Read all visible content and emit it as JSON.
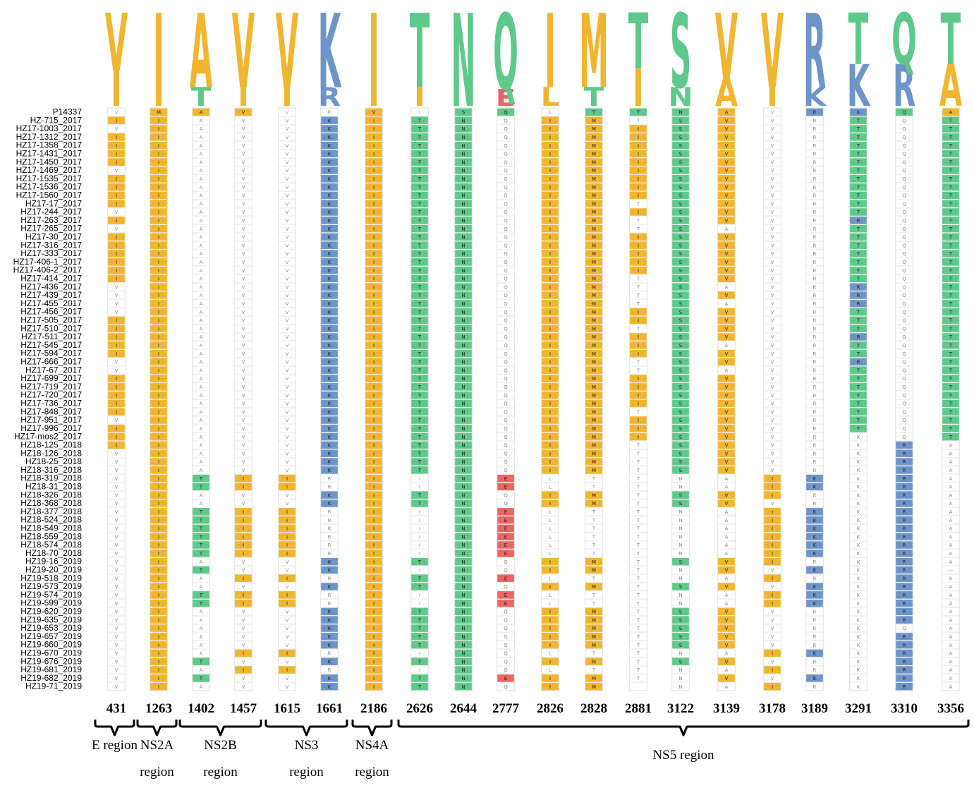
{
  "figure": {
    "type": "multiple sequence alignment with sequence logo",
    "colors": {
      "V": "#F0B630",
      "I": "#F0B630",
      "M": "#F0B630",
      "L": "#F0B630",
      "A": "#F0B630",
      "T": "#5EC98A",
      "S": "#5EC98A",
      "N": "#5EC98A",
      "Q": "#5EC98A",
      "K": "#6E95C9",
      "R": "#6E95C9",
      "E": "#EC6464"
    },
    "sample_names": [
      "P14337",
      "HZ-715_2017",
      "HZ17-1003_2017",
      "HZ17-1312_2017",
      "HZ17-1358_2017",
      "HZ17-1431_2017",
      "HZ17-1450_2017",
      "HZ17-1469_2017",
      "HZ17-1535_2017",
      "HZ17-1536_2017",
      "HZ17-1560_2017",
      "HZ17-17_2017",
      "HZ17-244_2017",
      "HZ17-263_2017",
      "HZ17-265_2017",
      "HZ17-30_2017",
      "HZ17-316_2017",
      "HZ17-333_2017",
      "HZ17-406-1_2017",
      "HZ17-406-2_2017",
      "HZ17-414_2017",
      "HZ17-436_2017",
      "HZ17-439_2017",
      "HZ17-455_2017",
      "HZ17-456_2017",
      "HZ17-505_2017",
      "HZ17-510_2017",
      "HZ17-511_2017",
      "HZ17-545_2017",
      "HZ17-594_2017",
      "HZ17-666_2017",
      "HZ17-67_2017",
      "HZ17-699_2017",
      "HZ17-719_2017",
      "HZ17-720_2017",
      "HZ17-736_2017",
      "HZ17-848_2017",
      "HZ17-951_2017",
      "HZ17-996_2017",
      "HZ17-mos2_2017",
      "HZ18-125_2018",
      "HZ18-126_2018",
      "HZ18-25_2018",
      "HZ18-316_2018",
      "HZ18-319_2018",
      "HZ18-31_2018",
      "HZ18-326_2018",
      "HZ18-368_2018",
      "HZ18-377_2018",
      "HZ18-524_2018",
      "HZ18-549_2018",
      "HZ18-559_2018",
      "HZ18-574_2018",
      "HZ18-70_2018",
      "HZ19-16_2019",
      "HZ19-20_2019",
      "HZ19-518_2019",
      "HZ19-573_2019",
      "HZ19-574_2019",
      "HZ19-599_2019",
      "HZ19-620_2019",
      "HZ19-635_2019",
      "HZ19-653_2019",
      "HZ19-657_2019",
      "HZ19-660_2019",
      "HZ19-670_2019",
      "HZ19-676_2019",
      "HZ19-681_2019",
      "HZ19-682_2019",
      "HZ19-71_2019"
    ],
    "positions": [
      {
        "label": "431",
        "logo": [
          {
            "aa": "V",
            "frac": 0.62
          },
          {
            "aa": "I",
            "frac": 0.38
          }
        ],
        "ref": "V",
        "vals": "IVIIIIVIIIIVIVIIIIIIVVVVIIIIIVVIIIIIVIIIVVVVVVVVVVVVVVVVVVVVVVVVVVVVV",
        "ref_hl": false
      },
      {
        "label": "1263",
        "logo": [
          {
            "aa": "I",
            "frac": 1.0
          }
        ],
        "ref": "M",
        "vals": "IIIIIIIIIIIIIIIIIIIIIIIIIIIIIIIIIIIIIIIIIIIIIIIIIIIIIIIIIIIIIIIIIIIII",
        "ref_hl": true
      },
      {
        "label": "1402",
        "logo": [
          {
            "aa": "A",
            "frac": 0.8
          },
          {
            "aa": "T",
            "frac": 0.2
          }
        ],
        "ref": "A",
        "vals": "AAAAAAAAAAAAAAAAAAAAAAAAAAAAAAAAAAAAAAAAAAATTAATTTTTTATAATTAAAAAATATA",
        "ref_hl": true
      },
      {
        "label": "1457",
        "logo": [
          {
            "aa": "V",
            "frac": 0.8
          },
          {
            "aa": "I",
            "frac": 0.2
          }
        ],
        "ref": "V",
        "vals": "VVVVVVVVVVVVVVVVVVVVVVVVVVVVVVVVVVVVVVVVVVVIIVVIIIIIIVVIVIIVVVVVIVIVV",
        "ref_hl": true
      },
      {
        "label": "1615",
        "logo": [
          {
            "aa": "V",
            "frac": 0.8
          },
          {
            "aa": "I",
            "frac": 0.2
          }
        ],
        "ref": "V",
        "vals": "VVVVVVVVVVVVVVVVVVVVVVVVVVVVVVVVVVVVVVVVVVVIIVVIIIIIIVVIVIIVVVVVIVIVV",
        "ref_hl": false
      },
      {
        "label": "1661",
        "logo": [
          {
            "aa": "K",
            "frac": 0.8
          },
          {
            "aa": "R",
            "frac": 0.2
          }
        ],
        "ref": "R",
        "vals": "KKKKKKKKKKKKKKKKKKKKKKKKKKKKKKKKKKKKKKKKKKKRRKKRRRRRRKKRKRRKKKKKRKRKK",
        "ref_hl": false
      },
      {
        "label": "2186",
        "logo": [
          {
            "aa": "I",
            "frac": 1.0
          }
        ],
        "ref": "V",
        "vals": "IIIIIIIIIIIIIIIIIIIIIIIIIIIIIIIIIIIIIIIIIIIIIIIIIIIIIIIIIIIIIIIIIIIII",
        "ref_hl": true
      },
      {
        "label": "2626",
        "logo": [
          {
            "aa": "T",
            "frac": 0.8
          },
          {
            "aa": "I",
            "frac": 0.2
          }
        ],
        "ref": "I",
        "vals": "TTTTTTTTTTTTTTTTTTTTTTTTTTTTTTTTTTTTTTTTTTTIITTIIIIIITITTIITTTTTITITT",
        "ref_hl": false
      },
      {
        "label": "2644",
        "logo": [
          {
            "aa": "N",
            "frac": 1.0
          }
        ],
        "ref": "S",
        "vals": "NNNNNNNNNNNNNNNNNNNNNNNNNNNNNNNNNNNNNNNNNNNNNNNNNNNNNNNNNNNNNNNNNNNNN",
        "ref_hl": true
      },
      {
        "label": "2777",
        "logo": [
          {
            "aa": "Q",
            "frac": 0.82
          },
          {
            "aa": "E",
            "frac": 0.18
          }
        ],
        "ref": "Q",
        "vals": "QQQQQQQQQQQQQQQQQQQQQQQQQQQQQQQQQQQQQQQQQQQEEQQEEEEEEQQEQEEQQQQQQQQEQ",
        "ref_hl": true
      },
      {
        "label": "2826",
        "logo": [
          {
            "aa": "I",
            "frac": 0.8
          },
          {
            "aa": "L",
            "frac": 0.2
          }
        ],
        "ref": "L",
        "vals": "IIIIIIIIIIIIIIIIIIIIIIIIIIIIIIIIIIIIIIIIIIILLIILLLLLLIILILLIIIIILILII",
        "ref_hl": false
      },
      {
        "label": "2828",
        "logo": [
          {
            "aa": "M",
            "frac": 0.8
          },
          {
            "aa": "T",
            "frac": 0.2
          }
        ],
        "ref": "T",
        "vals": "MMMMMMMMMMMMMMMMMMMMMMMMMMMMMMMMMMMMMMMMMMMTTMMTTTTTTMMTMTTMMMMMTMTMM",
        "ref_hl": true
      },
      {
        "label": "2881",
        "logo": [
          {
            "aa": "T",
            "frac": 0.6
          },
          {
            "aa": "I",
            "frac": 0.4
          }
        ],
        "ref": "T",
        "vals": "TIIIIIIIIITITTIIIIITTTTIITIIITTIIIITIIITTTTTTTTTTTTTTTTTTTTTTTTTTTTT",
        "ref_hl": true
      },
      {
        "label": "3122",
        "logo": [
          {
            "aa": "S",
            "frac": 0.8
          },
          {
            "aa": "N",
            "frac": 0.2
          }
        ],
        "ref": "N",
        "vals": "SSSSSSSSSSSSSSSSSSSSSSSSSSSSSSSSSSSSSSSSSSSNNSSNNNNNNSNNSNNSSSSSNSNNN",
        "ref_hl": true
      },
      {
        "label": "3139",
        "logo": [
          {
            "aa": "V",
            "frac": 0.7
          },
          {
            "aa": "A",
            "frac": 0.3
          }
        ],
        "ref": "A",
        "vals": "VVVVVVVVVVVVVAVVVVVVAVAVVVVAVVAVVVVVVVVVVVVAAVVAAAAAAVVAVAAVVVVVAVAVA",
        "ref_hl": true
      },
      {
        "label": "3178",
        "logo": [
          {
            "aa": "V",
            "frac": 0.8
          },
          {
            "aa": "I",
            "frac": 0.2
          }
        ],
        "ref": "V",
        "vals": "VVVVVVVVVVVVVVVVVVVVVVVVVVVVVVVVVVVVVVVVVVVIIIVIIIIIIIVIVIIVVVVVIVIVI",
        "ref_hl": false
      },
      {
        "label": "3189",
        "logo": [
          {
            "aa": "R",
            "frac": 0.8
          },
          {
            "aa": "K",
            "frac": 0.2
          }
        ],
        "ref": "R",
        "vals": "RRRRRRRRRRRRRRRRRRRRRRRRRRRRRRRRRRRRRRRRRRRKKRRKKKKKKRKRKKKRRRRRKRRKR",
        "ref_hl": true
      },
      {
        "label": "3291",
        "logo": [
          {
            "aa": "T",
            "frac": 0.55
          },
          {
            "aa": "K",
            "frac": 0.45
          }
        ],
        "ref": "K",
        "vals": "TTTTTTTTTTTTRTTTTTTTRRRTTTRTTRTTTTTTTTKKKKKKKKKKKKKKKKKKKKKKKKKKKKKKK",
        "ref_hl": true
      },
      {
        "label": "3310",
        "logo": [
          {
            "aa": "Q",
            "frac": 0.55
          },
          {
            "aa": "R",
            "frac": 0.45
          }
        ],
        "ref": "Q",
        "vals": "QQQQQQQQQQQQQQQQQQQQQQQQQQQQQQQQQQQQQQQRRRRRRRRRRRRRRRRRRRRRRQRRRRRRR",
        "ref_hl": true
      },
      {
        "label": "3356",
        "logo": [
          {
            "aa": "T",
            "frac": 0.55
          },
          {
            "aa": "A",
            "frac": 0.45
          }
        ],
        "ref": "A",
        "vals": "TTTTTTTTTTTTTTTTTTTTTTTTTTTTTTTTTTTTTTTAAAAAAAAAAAAAAA-AAAAAAAAAAAAAATA",
        "ref_hl": true
      }
    ],
    "regions": [
      {
        "name": "E region",
        "from": 0,
        "to": 0,
        "lines": [
          "E region"
        ]
      },
      {
        "name": "NS2A region",
        "from": 1,
        "to": 1,
        "lines": [
          "NS2A",
          "region"
        ]
      },
      {
        "name": "NS2B region",
        "from": 2,
        "to": 3,
        "lines": [
          "NS2B",
          "region"
        ]
      },
      {
        "name": "NS3 region",
        "from": 4,
        "to": 5,
        "lines": [
          "NS3",
          "region"
        ]
      },
      {
        "name": "NS4A region",
        "from": 6,
        "to": 6,
        "lines": [
          "NS4A",
          "region"
        ]
      },
      {
        "name": "NS5 region",
        "from": 7,
        "to": 19,
        "lines": [
          "NS5 region"
        ]
      }
    ]
  }
}
